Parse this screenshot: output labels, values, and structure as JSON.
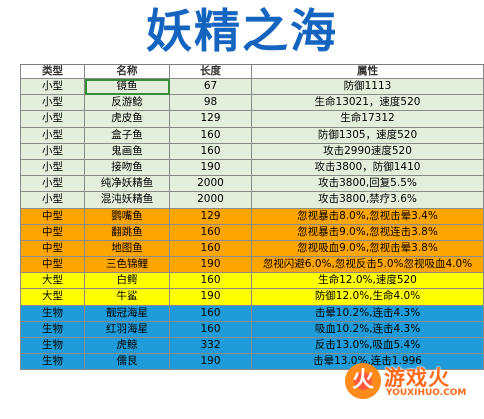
{
  "title": "妖精之海",
  "table": {
    "headers": [
      "类型",
      "名称",
      "长度",
      "属性"
    ],
    "rows": [
      {
        "type": "小型",
        "name": "镜鱼",
        "length": "67",
        "attr": "防御1113",
        "cat": "small"
      },
      {
        "type": "小型",
        "name": "反游鲶",
        "length": "98",
        "attr": "生命13021，速度520",
        "cat": "small"
      },
      {
        "type": "小型",
        "name": "虎皮鱼",
        "length": "129",
        "attr": "生命17312",
        "cat": "small"
      },
      {
        "type": "小型",
        "name": "盒子鱼",
        "length": "160",
        "attr": "防御1305，速度520",
        "cat": "small"
      },
      {
        "type": "小型",
        "name": "鬼画鱼",
        "length": "160",
        "attr": "攻击2990速度520",
        "cat": "small"
      },
      {
        "type": "小型",
        "name": "接吻鱼",
        "length": "190",
        "attr": "攻击3800，防御1410",
        "cat": "small"
      },
      {
        "type": "小型",
        "name": "纯净妖精鱼",
        "length": "2000",
        "attr": "攻击3800,回复5.5%",
        "cat": "small"
      },
      {
        "type": "小型",
        "name": "混沌妖精鱼",
        "length": "2000",
        "attr": "攻击3800,禁疗3.6%",
        "cat": "small"
      },
      {
        "type": "中型",
        "name": "鹦嘴鱼",
        "length": "129",
        "attr": "忽视暴击8.0%,忽视击晕3.4%",
        "cat": "mid"
      },
      {
        "type": "中型",
        "name": "翻跳鱼",
        "length": "160",
        "attr": "忽视暴击9.0%,忽视连击3.8%",
        "cat": "mid"
      },
      {
        "type": "中型",
        "name": "地图鱼",
        "length": "160",
        "attr": "忽视吸血9.0%,忽视击晕3.8%",
        "cat": "mid"
      },
      {
        "type": "中型",
        "name": "三色锦鲤",
        "length": "190",
        "attr": "忽视闪避6.0%,忽视反击5.0%忽视吸血4.0%",
        "cat": "mid"
      },
      {
        "type": "大型",
        "name": "白鳄",
        "length": "160",
        "attr": "生命12.0%,速度520",
        "cat": "big"
      },
      {
        "type": "大型",
        "name": "牛鲨",
        "length": "190",
        "attr": "防御12.0%,生命4.0%",
        "cat": "big"
      },
      {
        "type": "生物",
        "name": "靓冠海星",
        "length": "160",
        "attr": "击晕10.2%,连击4.3%",
        "cat": "bio"
      },
      {
        "type": "生物",
        "name": "红羽海星",
        "length": "160",
        "attr": "吸血10.2%,连击4.3%",
        "cat": "bio"
      },
      {
        "type": "生物",
        "name": "虎鲸",
        "length": "332",
        "attr": "反击13.0%,吸血5.4%",
        "cat": "bio"
      },
      {
        "type": "生物",
        "name": "儒艮",
        "length": "190",
        "attr": "击晕13.0%,连击1.996",
        "cat": "bio"
      }
    ]
  },
  "watermark": {
    "text": "游戏火",
    "sub": "YOUXIHUO.COM",
    "logo_glyph": "火"
  },
  "colors": {
    "title": "#1565c0",
    "small": "#e3eedb",
    "mid": "#ffa500",
    "big": "#ffff00",
    "bio": "#1e9bd8",
    "selection": "#3a8b3a"
  }
}
